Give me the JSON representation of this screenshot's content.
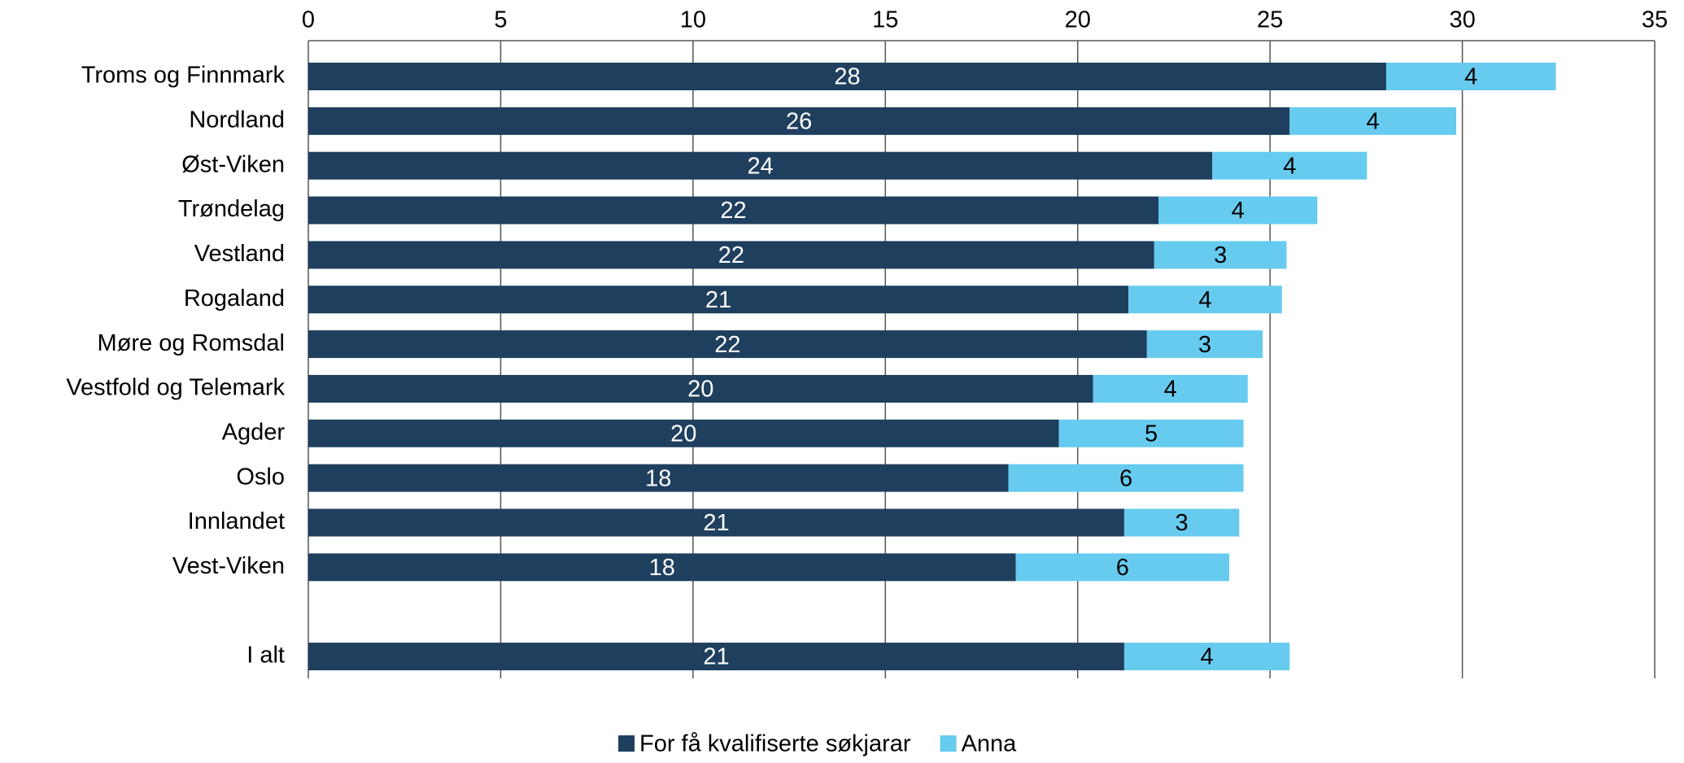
{
  "chart_data": {
    "type": "stacked-bar-horizontal",
    "categories": [
      "Troms og Finnmark",
      "Nordland",
      "Øst-Viken",
      "Trøndelag",
      "Vestland",
      "Rogaland",
      "Møre og Romsdal",
      "Vestfold og Telemark",
      "Agder",
      "Oslo",
      "Innlandet",
      "Vest-Viken",
      null,
      "I alt"
    ],
    "series": [
      {
        "name": "For få kvalifiserte søkjarar",
        "color": "#1f3f5f",
        "values": [
          28.02,
          25.51,
          23.5,
          22.1,
          21.99,
          21.32,
          21.8,
          20.4,
          19.51,
          18.2,
          21.21,
          18.39,
          null,
          21.21
        ],
        "value_labels": [
          "28",
          "26",
          "24",
          "22",
          "22",
          "21",
          "22",
          "20",
          "20",
          "18",
          "21",
          "18",
          null,
          "21"
        ]
      },
      {
        "name": "Anna",
        "color": "#67cbef",
        "values": [
          4.41,
          4.33,
          4.02,
          4.13,
          3.44,
          3.99,
          3.01,
          4.02,
          4.8,
          6.11,
          2.99,
          5.55,
          null,
          4.3
        ],
        "value_labels": [
          "4",
          "4",
          "4",
          "4",
          "3",
          "4",
          "3",
          "4",
          "5",
          "6",
          "3",
          "6",
          null,
          "4"
        ]
      }
    ],
    "xlim": [
      0,
      35
    ],
    "xticks": [
      0,
      5,
      10,
      15,
      20,
      25,
      30,
      35
    ],
    "grid": true,
    "legend": "bottom"
  }
}
